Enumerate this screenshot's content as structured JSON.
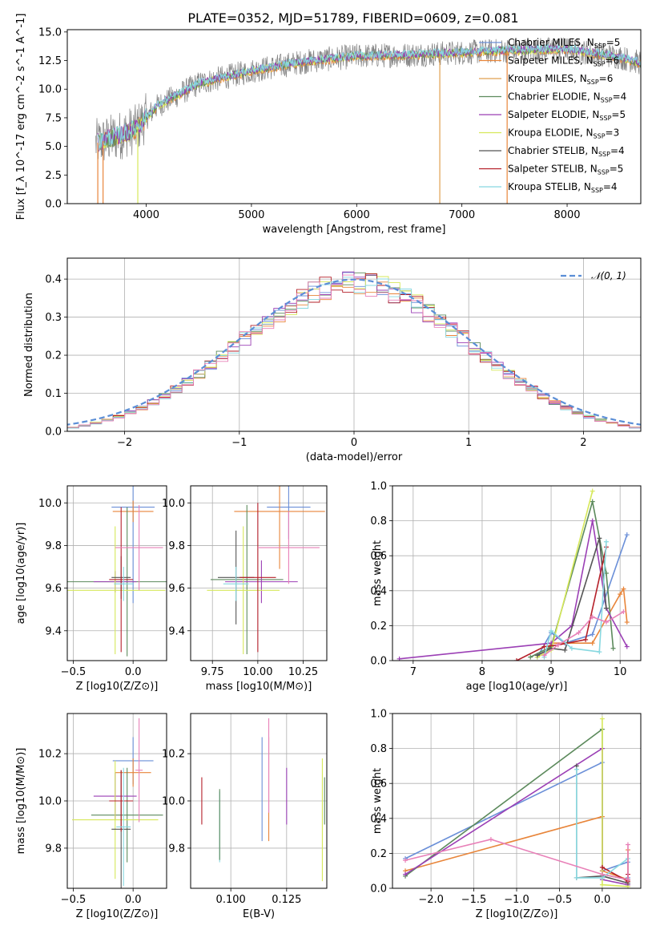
{
  "title": "PLATE=0352, MJD=51789, FIBERID=0609, z=0.081",
  "colors": {
    "Chabrier MILES": "#6a8fd8",
    "Salpeter MILES": "#e8853a",
    "Kroupa MILES": "#e0a050",
    "Chabrier ELODIE": "#5c8a5c",
    "Salpeter ELODIE": "#9b3fb5",
    "Kroupa ELODIE": "#d6e85a",
    "Chabrier STELIB": "#555555",
    "Salpeter STELIB": "#b5202a",
    "Kroupa STELIB": "#88d8e0",
    "pink": "#e880b8",
    "gauss": "#5b8ed6"
  },
  "legend_entries": [
    {
      "name": "Chabrier MILES",
      "n": "5"
    },
    {
      "name": "Salpeter MILES",
      "n": "6"
    },
    {
      "name": "Kroupa MILES",
      "n": "6"
    },
    {
      "name": "Chabrier ELODIE",
      "n": "4"
    },
    {
      "name": "Salpeter ELODIE",
      "n": "5"
    },
    {
      "name": "Kroupa ELODIE",
      "n": "3"
    },
    {
      "name": "Chabrier STELIB",
      "n": "4"
    },
    {
      "name": "Salpeter STELIB",
      "n": "5"
    },
    {
      "name": "Kroupa STELIB",
      "n": "4"
    }
  ],
  "chart_data": [
    {
      "id": "spectrum",
      "type": "line",
      "xlabel": "wavelength [Angstrom, rest frame]",
      "ylabel": "Flux [f_λ 10^-17 erg cm^-2 s^-1 A^-1]",
      "xlim": [
        3250,
        8700
      ],
      "ylim": [
        0,
        15.2
      ],
      "xticks": [
        4000,
        5000,
        6000,
        7000,
        8000
      ],
      "yticks": [
        0.0,
        2.5,
        5.0,
        7.5,
        10.0,
        12.5,
        15.0
      ],
      "grid": false,
      "legend": "right",
      "continuum": {
        "x": [
          3500,
          3700,
          3900,
          4100,
          4500,
          5000,
          5500,
          6000,
          6500,
          7000,
          7500,
          8000,
          8500,
          8700
        ],
        "y": [
          5.2,
          5.8,
          6.5,
          8.5,
          10.5,
          11.6,
          12.4,
          12.9,
          13.0,
          13.2,
          13.4,
          13.5,
          12.8,
          12.3
        ]
      }
    },
    {
      "id": "residuals",
      "type": "histogram",
      "xlabel": "(data-model)/error",
      "ylabel": "Normed distribution",
      "xlim": [
        -2.5,
        2.5
      ],
      "ylim": [
        0,
        0.455
      ],
      "xticks": [
        -2,
        -1,
        0,
        1,
        2
      ],
      "yticks": [
        0.0,
        0.1,
        0.2,
        0.3,
        0.4
      ],
      "grid": true,
      "legend": "top-right",
      "gauss_label": "𝒩(0, 1)"
    },
    {
      "id": "age_vs_Z",
      "type": "errorbar",
      "xlabel": "Z [log10(Z/Z⊙)]",
      "ylabel": "age  [log10(age/yr)]",
      "xlim": [
        -0.55,
        0.28
      ],
      "ylim": [
        9.26,
        10.08
      ],
      "xticks": [
        -0.5,
        0.0
      ],
      "yticks": [
        9.4,
        9.6,
        9.8,
        10.0
      ],
      "grid": true,
      "points": [
        {
          "s": "Chabrier MILES",
          "x": 0.0,
          "y": 9.98,
          "xerr": 0.18,
          "yerr": 0.45
        },
        {
          "s": "Salpeter MILES",
          "x": 0.0,
          "y": 9.96,
          "xerr": 0.17,
          "yerr": 0.05
        },
        {
          "s": "Chabrier ELODIE",
          "x": -0.05,
          "y": 9.63,
          "xerr": 0.5,
          "yerr": 0.35
        },
        {
          "s": "Salpeter ELODIE",
          "x": -0.15,
          "y": 9.63,
          "xerr": 0.18,
          "yerr": 0.05
        },
        {
          "s": "Kroupa ELODIE",
          "x": -0.15,
          "y": 9.59,
          "xerr": 0.42,
          "yerr": 0.3
        },
        {
          "s": "Chabrier STELIB",
          "x": -0.1,
          "y": 9.65,
          "xerr": 0.08,
          "yerr": 0.1
        },
        {
          "s": "Salpeter STELIB",
          "x": -0.1,
          "y": 9.64,
          "xerr": 0.1,
          "yerr": 0.34
        },
        {
          "s": "Kroupa STELIB",
          "x": -0.08,
          "y": 9.62,
          "xerr": 0.08,
          "yerr": 0.08
        },
        {
          "s": "pink",
          "x": 0.05,
          "y": 9.79,
          "xerr": 0.2,
          "yerr": 0.2
        }
      ]
    },
    {
      "id": "age_vs_mass",
      "type": "errorbar",
      "xlabel": "mass [log10(M/M⊙)]",
      "ylabel": "",
      "xlim": [
        9.63,
        10.38
      ],
      "ylim": [
        9.26,
        10.08
      ],
      "xticks": [
        9.75,
        10.0,
        10.25
      ],
      "yticks": [
        9.4,
        9.6,
        9.8,
        10.0
      ],
      "grid": true,
      "points": [
        {
          "s": "Chabrier MILES",
          "x": 10.17,
          "y": 9.98,
          "xerr": 0.12,
          "yerr": 0.15
        },
        {
          "s": "Salpeter MILES",
          "x": 10.12,
          "y": 9.96,
          "xerr": 0.25,
          "yerr": 0.27
        },
        {
          "s": "Chabrier ELODIE",
          "x": 9.94,
          "y": 9.64,
          "xerr": 0.2,
          "yerr": 0.35
        },
        {
          "s": "Salpeter ELODIE",
          "x": 10.02,
          "y": 9.63,
          "xerr": 0.2,
          "yerr": 0.1
        },
        {
          "s": "Kroupa ELODIE",
          "x": 9.92,
          "y": 9.59,
          "xerr": 0.2,
          "yerr": 0.3
        },
        {
          "s": "Chabrier STELIB",
          "x": 9.88,
          "y": 9.65,
          "xerr": 0.1,
          "yerr": 0.22
        },
        {
          "s": "Salpeter STELIB",
          "x": 10.0,
          "y": 9.65,
          "xerr": 0.1,
          "yerr": 0.35
        },
        {
          "s": "Kroupa STELIB",
          "x": 9.88,
          "y": 9.62,
          "xerr": 0.07,
          "yerr": 0.08
        },
        {
          "s": "pink",
          "x": 10.17,
          "y": 9.79,
          "xerr": 0.17,
          "yerr": 0.17
        }
      ]
    },
    {
      "id": "weight_vs_age",
      "type": "line",
      "xlabel": "age  [log10(age/yr)]",
      "ylabel": "mass weight",
      "xlim": [
        6.7,
        10.3
      ],
      "ylim": [
        0,
        1.0
      ],
      "xticks": [
        7,
        8,
        9,
        10
      ],
      "yticks": [
        0.0,
        0.2,
        0.4,
        0.6,
        0.8,
        1.0
      ],
      "grid": true,
      "series": [
        {
          "s": "Chabrier MILES",
          "x": [
            8.8,
            9.0,
            9.2,
            9.6,
            10.1
          ],
          "y": [
            0.02,
            0.16,
            0.1,
            0.15,
            0.72
          ]
        },
        {
          "s": "Salpeter MILES",
          "x": [
            8.9,
            9.0,
            9.6,
            10.0,
            10.05,
            10.1
          ],
          "y": [
            0.03,
            0.1,
            0.1,
            0.38,
            0.41,
            0.22
          ]
        },
        {
          "s": "Chabrier ELODIE",
          "x": [
            8.7,
            9.0,
            9.6,
            9.8,
            9.9
          ],
          "y": [
            0.02,
            0.08,
            0.91,
            0.5,
            0.07
          ]
        },
        {
          "s": "Salpeter ELODIE",
          "x": [
            6.8,
            9.0,
            9.3,
            9.6,
            9.8,
            10.1
          ],
          "y": [
            0.01,
            0.1,
            0.2,
            0.8,
            0.3,
            0.08
          ]
        },
        {
          "s": "Kroupa ELODIE",
          "x": [
            8.8,
            9.0,
            9.6
          ],
          "y": [
            0.02,
            0.06,
            0.97
          ]
        },
        {
          "s": "Chabrier STELIB",
          "x": [
            8.8,
            9.0,
            9.2,
            9.7,
            9.8
          ],
          "y": [
            0.03,
            0.07,
            0.06,
            0.7,
            0.3
          ]
        },
        {
          "s": "Salpeter STELIB",
          "x": [
            8.5,
            8.9,
            9.1,
            9.5,
            9.8
          ],
          "y": [
            0.0,
            0.08,
            0.09,
            0.12,
            0.65
          ]
        },
        {
          "s": "Kroupa STELIB",
          "x": [
            8.9,
            9.0,
            9.3,
            9.7,
            9.8
          ],
          "y": [
            0.02,
            0.17,
            0.07,
            0.05,
            0.68
          ]
        },
        {
          "s": "pink",
          "x": [
            8.9,
            9.1,
            9.4,
            9.6,
            9.8,
            10.05
          ],
          "y": [
            0.03,
            0.09,
            0.16,
            0.25,
            0.22,
            0.28
          ]
        }
      ]
    },
    {
      "id": "mass_vs_Z",
      "type": "errorbar",
      "xlabel": "Z [log10(Z/Z⊙)]",
      "ylabel": "mass [log10(M/M⊙)]",
      "xlim": [
        -0.55,
        0.28
      ],
      "ylim": [
        9.63,
        10.37
      ],
      "xticks": [
        -0.5,
        0.0
      ],
      "yticks": [
        9.8,
        10.0,
        10.2
      ],
      "grid": true,
      "points": [
        {
          "s": "Chabrier MILES",
          "x": 0.0,
          "y": 10.17,
          "xerr": 0.17,
          "yerr": 0.1
        },
        {
          "s": "Salpeter MILES",
          "x": 0.0,
          "y": 10.12,
          "xerr": 0.15,
          "yerr": 0.06
        },
        {
          "s": "Chabrier ELODIE",
          "x": -0.05,
          "y": 9.94,
          "xerr": 0.3,
          "yerr": 0.2
        },
        {
          "s": "Salpeter ELODIE",
          "x": -0.15,
          "y": 10.02,
          "xerr": 0.18,
          "yerr": 0.1
        },
        {
          "s": "Kroupa ELODIE",
          "x": -0.15,
          "y": 9.92,
          "xerr": 0.36,
          "yerr": 0.25
        },
        {
          "s": "Chabrier STELIB",
          "x": -0.1,
          "y": 9.88,
          "xerr": 0.08,
          "yerr": 0.25
        },
        {
          "s": "Salpeter STELIB",
          "x": -0.1,
          "y": 10.0,
          "xerr": 0.1,
          "yerr": 0.13
        },
        {
          "s": "Kroupa STELIB",
          "x": -0.08,
          "y": 9.89,
          "xerr": 0.06,
          "yerr": 0.25
        },
        {
          "s": "pink",
          "x": 0.05,
          "y": 10.13,
          "xerr": 0.03,
          "yerr": 0.22
        }
      ]
    },
    {
      "id": "mass_vs_ebv",
      "type": "errorbar",
      "xlabel": "E(B-V)",
      "ylabel": "",
      "xlim": [
        0.082,
        0.143
      ],
      "ylim": [
        9.63,
        10.37
      ],
      "xticks": [
        0.1,
        0.125
      ],
      "yticks": [
        9.8,
        10.0,
        10.2
      ],
      "grid": true,
      "points": [
        {
          "s": "Salpeter STELIB",
          "x": 0.087,
          "y": 10.0,
          "xerr": 0,
          "yerr": 0.1
        },
        {
          "s": "Kroupa STELIB",
          "x": 0.095,
          "y": 9.89,
          "xerr": 0,
          "yerr": 0.15
        },
        {
          "s": "Chabrier ELODIE",
          "x": 0.095,
          "y": 9.9,
          "xerr": 0,
          "yerr": 0.15
        },
        {
          "s": "Chabrier MILES",
          "x": 0.114,
          "y": 10.05,
          "xerr": 0,
          "yerr": 0.22
        },
        {
          "s": "Salpeter MILES",
          "x": 0.117,
          "y": 10.05,
          "xerr": 0,
          "yerr": 0.22
        },
        {
          "s": "pink",
          "x": 0.117,
          "y": 10.15,
          "xerr": 0,
          "yerr": 0.2
        },
        {
          "s": "Salpeter ELODIE",
          "x": 0.125,
          "y": 10.02,
          "xerr": 0,
          "yerr": 0.12
        },
        {
          "s": "Kroupa ELODIE",
          "x": 0.141,
          "y": 9.92,
          "xerr": 0,
          "yerr": 0.26
        },
        {
          "s": "Chabrier ELODIE",
          "x": 0.142,
          "y": 10.0,
          "xerr": 0,
          "yerr": 0.1
        }
      ]
    },
    {
      "id": "weight_vs_Z",
      "type": "line",
      "xlabel": "Z [log10(Z/Z⊙)]",
      "ylabel": "mass weight",
      "xlim": [
        -2.45,
        0.45
      ],
      "ylim": [
        0,
        1.0
      ],
      "xticks": [
        -2.0,
        -1.5,
        -1.0,
        -0.5,
        0.0
      ],
      "yticks": [
        0.0,
        0.2,
        0.4,
        0.6,
        0.8,
        1.0
      ],
      "grid": true,
      "series": [
        {
          "s": "Chabrier MILES",
          "x": [
            -2.3,
            0.0,
            0.0,
            0.3,
            0.3
          ],
          "y": [
            0.17,
            0.72,
            0.1,
            0.15,
            0.06
          ]
        },
        {
          "s": "Salpeter MILES",
          "x": [
            -2.3,
            0.0,
            0.0,
            0.3,
            0.3
          ],
          "y": [
            0.1,
            0.41,
            0.1,
            0.05,
            0.22
          ]
        },
        {
          "s": "Chabrier ELODIE",
          "x": [
            -2.3,
            0.0,
            0.0,
            0.3
          ],
          "y": [
            0.07,
            0.91,
            0.08,
            0.05
          ]
        },
        {
          "s": "Salpeter ELODIE",
          "x": [
            -2.3,
            0.0,
            0.0,
            0.3
          ],
          "y": [
            0.08,
            0.8,
            0.05,
            0.02
          ]
        },
        {
          "s": "Kroupa ELODIE",
          "x": [
            0.0,
            0.0,
            0.3
          ],
          "y": [
            0.97,
            0.02,
            0.01
          ]
        },
        {
          "s": "Chabrier STELIB",
          "x": [
            -0.3,
            -0.3,
            0.0,
            0.3
          ],
          "y": [
            0.7,
            0.06,
            0.07,
            0.03
          ]
        },
        {
          "s": "Salpeter STELIB",
          "x": [
            0.0,
            0.3,
            0.3
          ],
          "y": [
            0.12,
            0.04,
            0.08
          ]
        },
        {
          "s": "Kroupa STELIB",
          "x": [
            -0.3,
            -0.3,
            0.0,
            0.3
          ],
          "y": [
            0.68,
            0.06,
            0.06,
            0.17
          ]
        },
        {
          "s": "pink",
          "x": [
            -2.3,
            -1.3,
            0.0,
            0.3,
            0.3
          ],
          "y": [
            0.16,
            0.28,
            0.08,
            0.05,
            0.25
          ]
        }
      ]
    }
  ]
}
